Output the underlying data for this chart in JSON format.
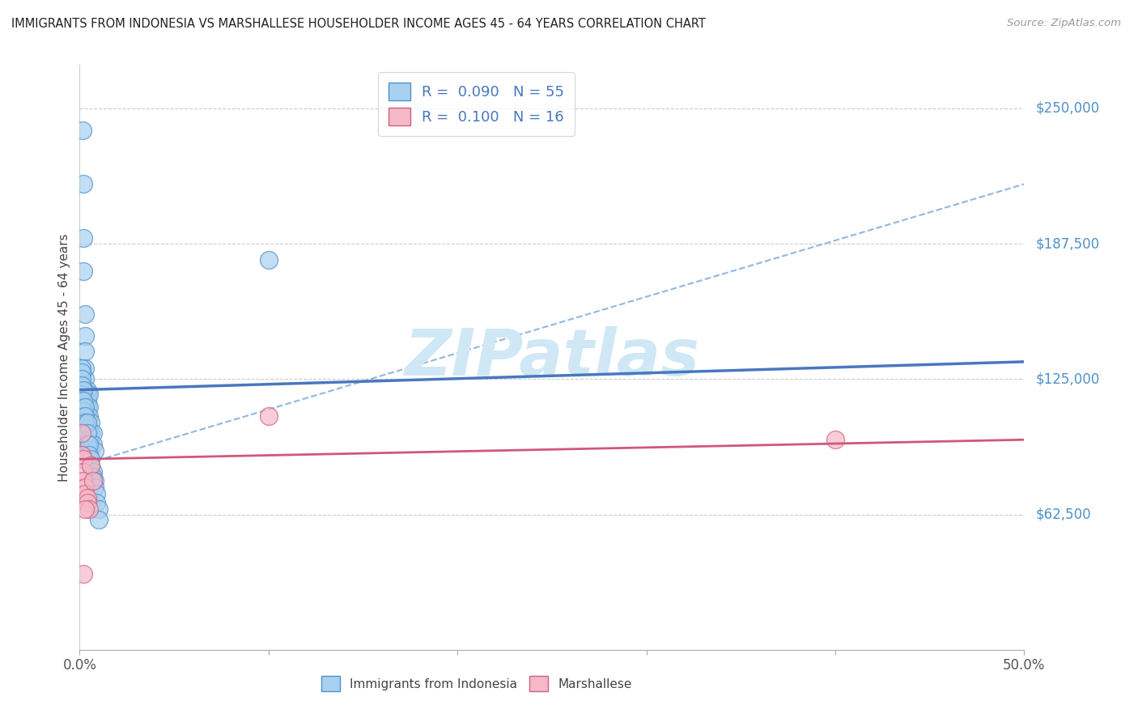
{
  "title": "IMMIGRANTS FROM INDONESIA VS MARSHALLESE HOUSEHOLDER INCOME AGES 45 - 64 YEARS CORRELATION CHART",
  "source": "Source: ZipAtlas.com",
  "ylabel": "Householder Income Ages 45 - 64 years",
  "ytick_values": [
    62500,
    125000,
    187500,
    250000
  ],
  "ytick_labels": [
    "$62,500",
    "$125,000",
    "$187,500",
    "$250,000"
  ],
  "ylim": [
    0,
    270000
  ],
  "xlim": [
    0.0,
    0.5
  ],
  "r_indonesia": 0.09,
  "n_indonesia": 55,
  "r_marshallese": 0.1,
  "n_marshallese": 16,
  "color_indonesia_fill": "#A8D0F0",
  "color_indonesia_edge": "#5090C8",
  "color_marshallese_fill": "#F5B8C8",
  "color_marshallese_edge": "#D06080",
  "color_trendline_indonesia": "#4878C0",
  "color_trendline_marshallese": "#D05878",
  "color_dashed": "#90B8E0",
  "color_ytick": "#5090C8",
  "watermark_color": "#D0E8F5",
  "indonesia_x": [
    0.0015,
    0.002,
    0.002,
    0.002,
    0.003,
    0.003,
    0.003,
    0.003,
    0.003,
    0.004,
    0.004,
    0.004,
    0.004,
    0.004,
    0.004,
    0.005,
    0.005,
    0.005,
    0.005,
    0.005,
    0.006,
    0.006,
    0.006,
    0.007,
    0.007,
    0.008,
    0.001,
    0.001,
    0.001,
    0.001,
    0.001,
    0.001,
    0.002,
    0.002,
    0.002,
    0.002,
    0.003,
    0.003,
    0.003,
    0.004,
    0.004,
    0.004,
    0.005,
    0.005,
    0.006,
    0.006,
    0.007,
    0.007,
    0.008,
    0.008,
    0.009,
    0.009,
    0.01,
    0.01,
    0.1
  ],
  "indonesia_y": [
    240000,
    215000,
    190000,
    175000,
    155000,
    145000,
    138000,
    130000,
    125000,
    120000,
    118000,
    115000,
    112000,
    108000,
    105000,
    118000,
    112000,
    108000,
    102000,
    98000,
    105000,
    100000,
    95000,
    100000,
    95000,
    92000,
    130000,
    128000,
    125000,
    122000,
    118000,
    115000,
    120000,
    115000,
    110000,
    108000,
    112000,
    108000,
    105000,
    105000,
    100000,
    95000,
    95000,
    90000,
    88000,
    85000,
    82000,
    80000,
    78000,
    75000,
    72000,
    68000,
    65000,
    60000,
    180000
  ],
  "marshallese_x": [
    0.001,
    0.001,
    0.002,
    0.002,
    0.002,
    0.003,
    0.003,
    0.004,
    0.004,
    0.005,
    0.006,
    0.007,
    0.1,
    0.4,
    0.002,
    0.003
  ],
  "marshallese_y": [
    100000,
    90000,
    88000,
    82000,
    78000,
    75000,
    72000,
    70000,
    68000,
    65000,
    85000,
    78000,
    108000,
    97000,
    35000,
    65000
  ],
  "ind_trend": [
    0.0,
    120000,
    0.5,
    133000
  ],
  "marsh_trend": [
    0.0,
    88000,
    0.5,
    97000
  ],
  "dash_trend": [
    0.0,
    85000,
    0.5,
    215000
  ],
  "xtick_positions": [
    0.0,
    0.1,
    0.2,
    0.3,
    0.4,
    0.5
  ],
  "xtick_edge_labels": {
    "0.0": "0.0%",
    "0.5": "50.0%"
  }
}
